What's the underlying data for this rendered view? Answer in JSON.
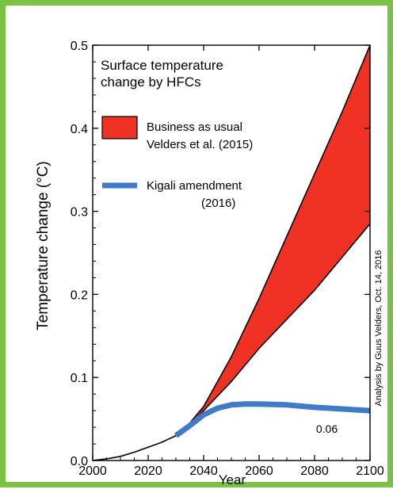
{
  "frame_color": "#7cc242",
  "chart_data": {
    "type": "area",
    "title": "Surface temperature\nchange by HFCs",
    "title_lines": [
      "Surface temperature",
      "change by HFCs"
    ],
    "xlabel": "Year",
    "ylabel": "Temperature change (°C)",
    "xlim": [
      2000,
      2100
    ],
    "ylim": [
      0,
      0.5
    ],
    "x_ticks": [
      2000,
      2020,
      2040,
      2060,
      2080,
      2100
    ],
    "x_tick_labels": [
      "2000",
      "2020",
      "2040",
      "2060",
      "2080",
      "2100"
    ],
    "y_ticks": [
      0,
      0.1,
      0.2,
      0.3,
      0.4,
      0.5
    ],
    "y_tick_labels": [
      "0.0",
      "0.1",
      "0.2",
      "0.3",
      "0.4",
      "0.5"
    ],
    "grid": false,
    "legend_position": "top-left",
    "base_curve": {
      "x": [
        2000,
        2005,
        2010,
        2015,
        2020,
        2025,
        2030
      ],
      "y": [
        0,
        0.002,
        0.005,
        0.01,
        0.016,
        0.022,
        0.03
      ]
    },
    "series": [
      {
        "name": "Business as usual\nVelders et al. (2015)",
        "legend_lines": [
          "Business as usual",
          "Velders et al. (2015)"
        ],
        "type": "band",
        "color": "#ef3223",
        "x": [
          2030,
          2035,
          2040,
          2050,
          2060,
          2070,
          2080,
          2090,
          2100
        ],
        "upper": [
          0.03,
          0.045,
          0.065,
          0.125,
          0.195,
          0.27,
          0.345,
          0.42,
          0.5
        ],
        "lower": [
          0.03,
          0.043,
          0.06,
          0.095,
          0.135,
          0.17,
          0.205,
          0.245,
          0.285
        ]
      },
      {
        "name": "Kigali amendment\n(2016)",
        "legend_lines": [
          "Kigali amendment",
          "(2016)"
        ],
        "type": "line",
        "color": "#3f7bc8",
        "x": [
          2030,
          2035,
          2040,
          2045,
          2050,
          2055,
          2060,
          2070,
          2080,
          2090,
          2100
        ],
        "y": [
          0.03,
          0.042,
          0.055,
          0.063,
          0.067,
          0.068,
          0.068,
          0.067,
          0.064,
          0.062,
          0.06
        ]
      }
    ],
    "annotations": [
      {
        "text": "0.06",
        "x": 2085,
        "y": 0.06
      }
    ],
    "credit": "Analysis by Guus Velders, Oct. 14, 2016"
  }
}
